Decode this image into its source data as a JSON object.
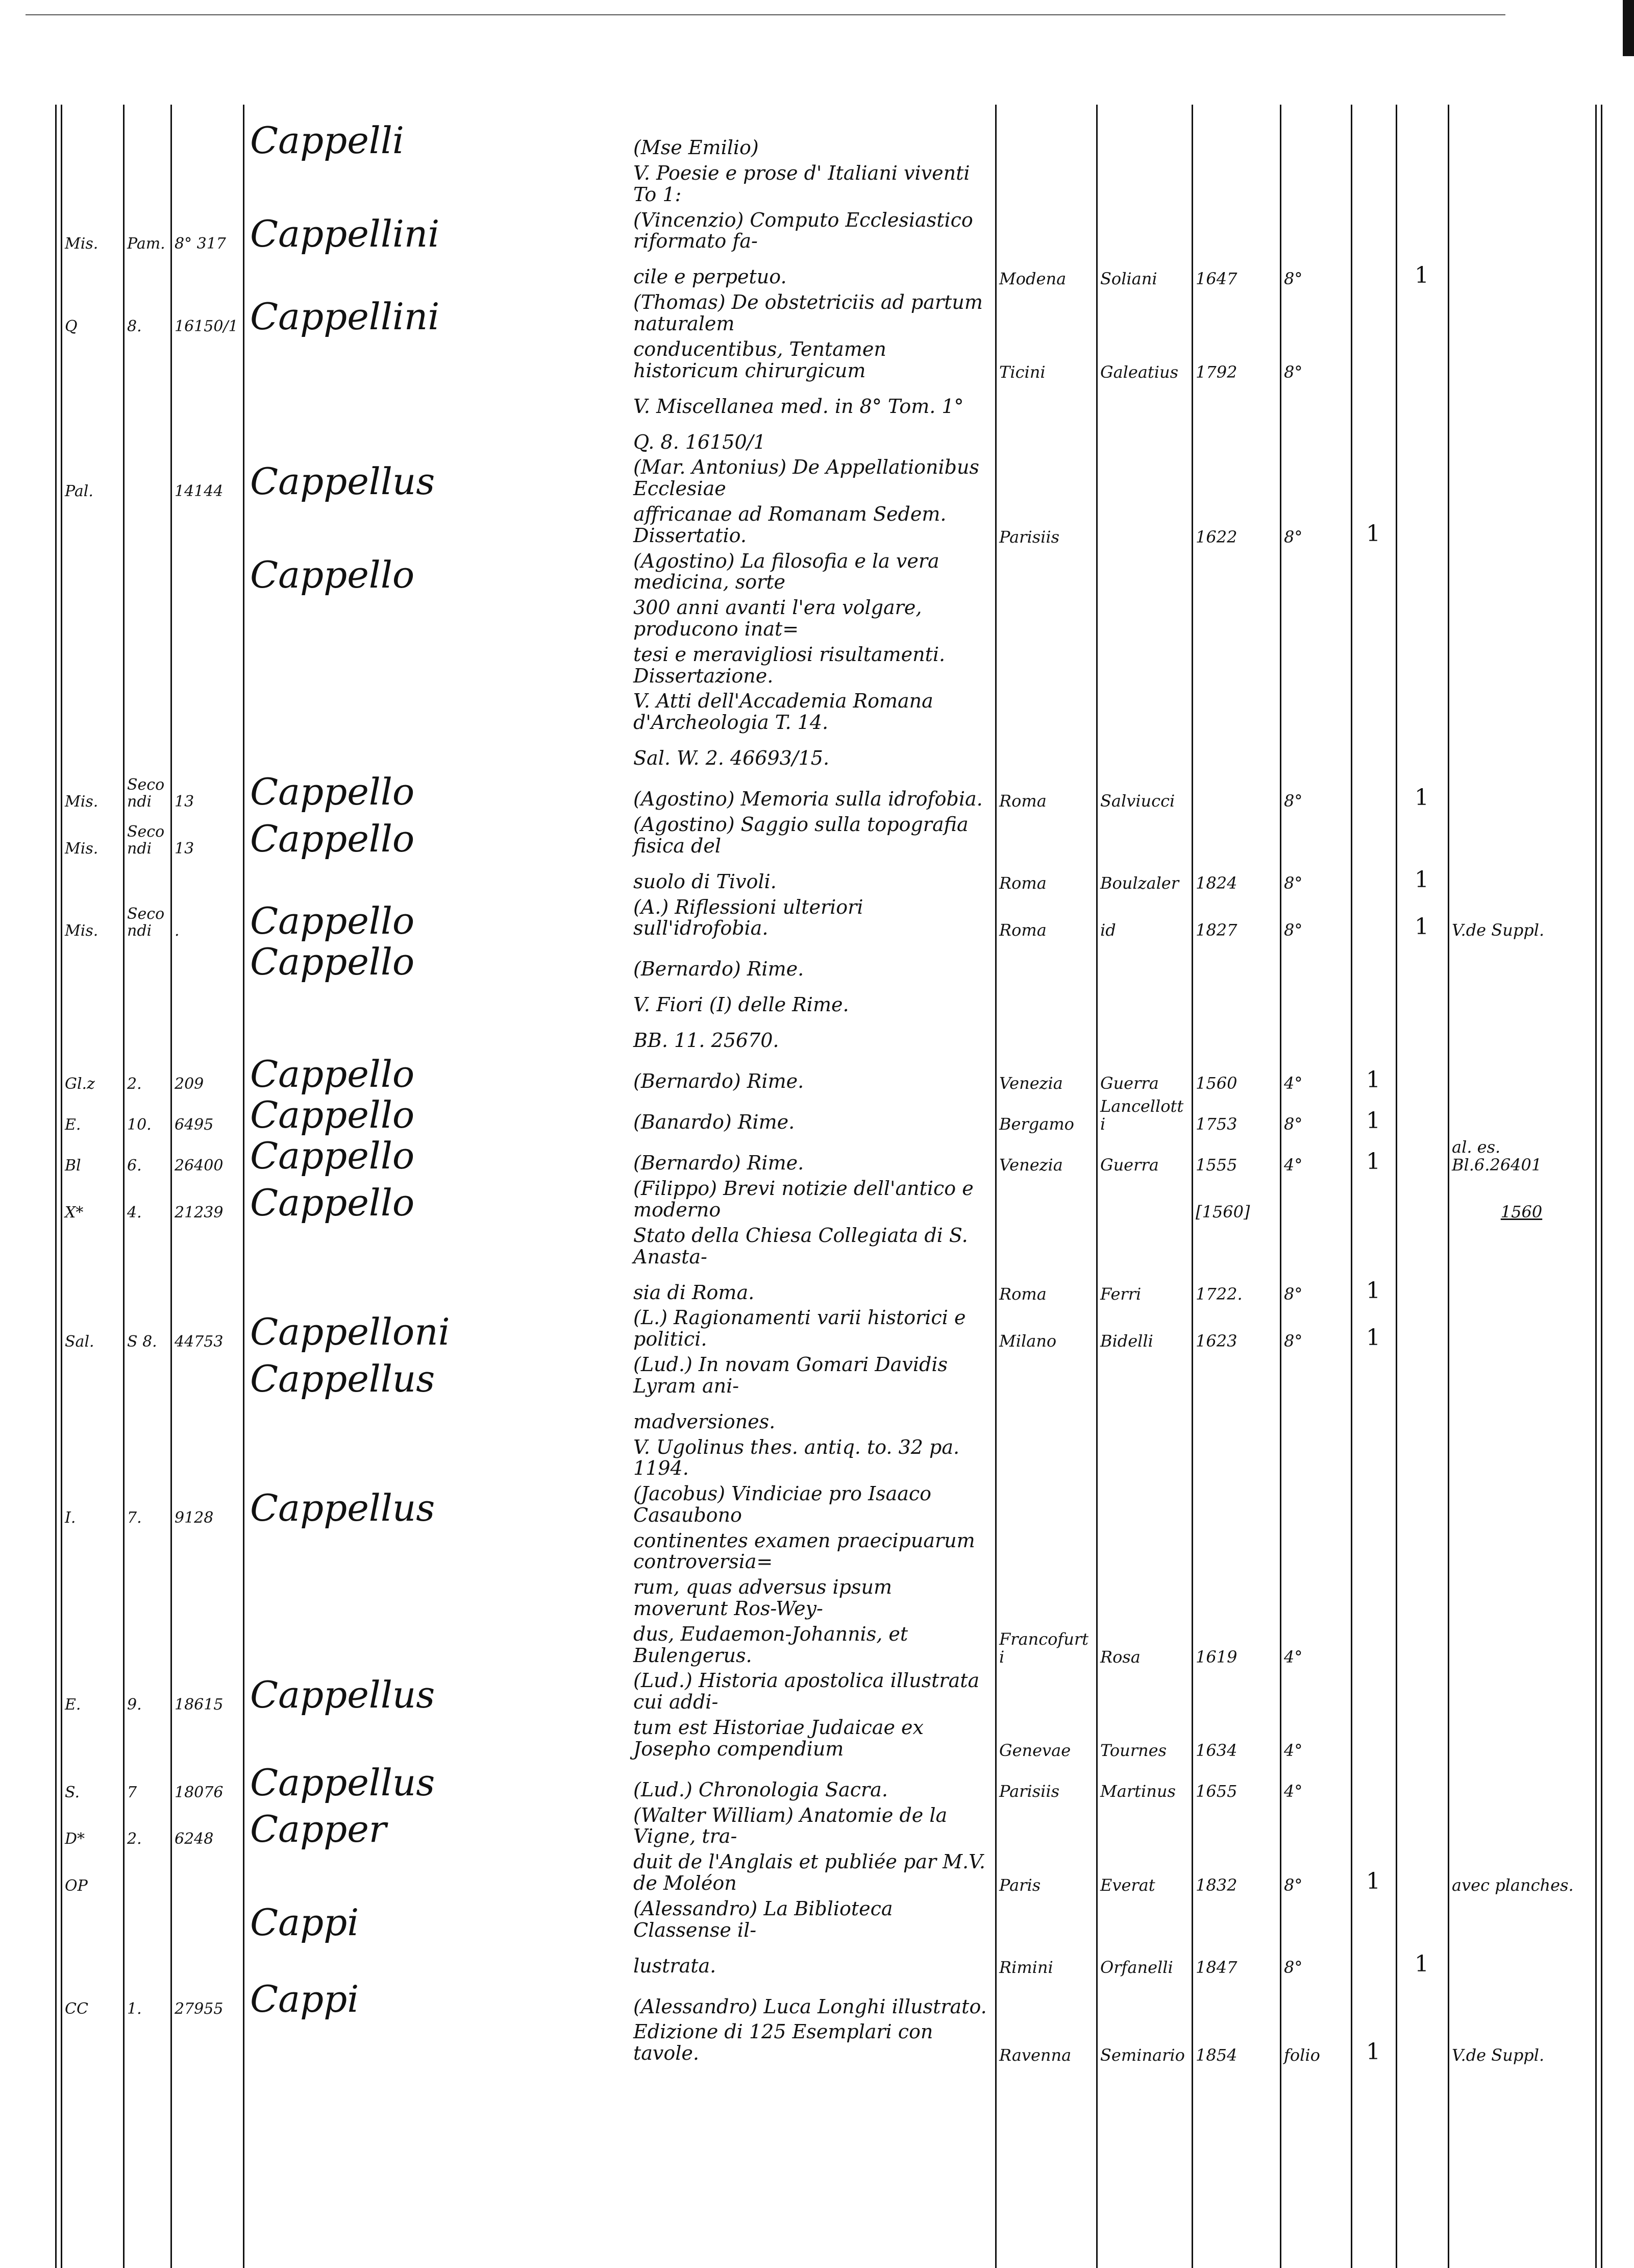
{
  "entries": [
    {
      "name": "Cappelli",
      "text": "(Mse Emilio)"
    },
    {
      "text": "V. Poesie e prose d' Italiani viventi To 1:"
    },
    {
      "shelf1": "Mis.",
      "shelf2": "Pam.",
      "shelf3": "8° 317",
      "name": "Cappellini",
      "text": "(Vincenzio) Computo Ecclesiastico riformato fa-"
    },
    {
      "text": "cile e perpetuo.",
      "place": "Modena",
      "printer": "Soliani",
      "year": "1647",
      "format": "8°",
      "c2": "1"
    },
    {
      "shelf1": "Q",
      "shelf2": "8.",
      "shelf3": "16150/1",
      "name": "Cappellini",
      "text": "(Thomas) De obstetriciis ad partum naturalem"
    },
    {
      "text": "conducentibus, Tentamen historicum chirurgicum",
      "place": "Ticini",
      "printer": "Galeatius",
      "year": "1792",
      "format": "8°"
    },
    {
      "text": "V. Miscellanea med. in 8° Tom. 1°"
    },
    {
      "text": "Q. 8. 16150/1"
    },
    {
      "shelf1": "Pal.",
      "shelf3": "14144",
      "name": "Cappellus",
      "text": "(Mar. Antonius) De Appellationibus Ecclesiae"
    },
    {
      "text": "affricanae ad Romanam Sedem. Dissertatio.",
      "place": "Parisiis",
      "year": "1622",
      "format": "8°",
      "c1": "1"
    },
    {
      "name": "Cappello",
      "text": "(Agostino) La filosofia e la vera medicina, sorte"
    },
    {
      "text": "300 anni avanti l'era volgare, producono inat="
    },
    {
      "text": "tesi e meravigliosi risultamenti. Dissertazione."
    },
    {
      "text": "V. Atti dell'Accademia Romana d'Archeologia T. 14."
    },
    {
      "text": "Sal. W. 2. 46693/15."
    },
    {
      "shelf1": "Mis.",
      "shelf2": "Secondi",
      "shelf3": "13",
      "name": "Cappello",
      "text": "(Agostino) Memoria sulla idrofobia.",
      "place": "Roma",
      "printer": "Salviucci",
      "format": "8°",
      "c2": "1"
    },
    {
      "shelf1": "Mis.",
      "shelf2": "Secondi",
      "shelf3": "13",
      "name": "Cappello",
      "text": "(Agostino) Saggio sulla topografia fisica del"
    },
    {
      "text": "suolo di Tivoli.",
      "place": "Roma",
      "printer": "Boulzaler",
      "year": "1824",
      "format": "8°",
      "c2": "1"
    },
    {
      "shelf1": "Mis.",
      "shelf2": "Secondi",
      "shelf3": ".",
      "name": "Cappello",
      "text": "(A.) Riflessioni ulteriori sull'idrofobia.",
      "place": "Roma",
      "printer": "id",
      "year": "1827",
      "format": "8°",
      "c2": "1",
      "note": "V.de Suppl."
    },
    {
      "name": "Cappello",
      "text": "(Bernardo) Rime."
    },
    {
      "text": "V. Fiori (I) delle Rime."
    },
    {
      "text": "BB. 11. 25670."
    },
    {
      "shelf1": "Gl.z",
      "shelf2": "2.",
      "shelf3": "209",
      "name": "Cappello",
      "text": "(Bernardo) Rime.",
      "place": "Venezia",
      "printer": "Guerra",
      "year": "1560",
      "format": "4°",
      "c1": "1"
    },
    {
      "shelf1": "E.",
      "shelf2": "10.",
      "shelf3": "6495",
      "name": "Cappello",
      "text": "(Banardo) Rime.",
      "place": "Bergamo",
      "printer": "Lancellotti",
      "year": "1753",
      "format": "8°",
      "c1": "1"
    },
    {
      "shelf1": "Bl",
      "shelf2": "6.",
      "shelf3": "26400",
      "name": "Cappello",
      "text": "(Bernardo) Rime.",
      "place": "Venezia",
      "printer": "Guerra",
      "year": "1555",
      "format": "4°",
      "c1": "1",
      "note": "al. es. Bl.6.26401"
    },
    {
      "shelf1": "X*",
      "shelf2": "4.",
      "shelf3": "21239",
      "name": "Cappello",
      "text": "(Filippo) Brevi notizie dell'antico e moderno",
      "year": "[1560]",
      "note": "1560"
    },
    {
      "text": "Stato della Chiesa Collegiata di S. Anasta-"
    },
    {
      "text": "sia di Roma.",
      "place": "Roma",
      "printer": "Ferri",
      "year": "1722.",
      "format": "8°",
      "c1": "1"
    },
    {
      "shelf1": "Sal.",
      "shelf2": "S 8.",
      "shelf3": "44753",
      "name": "Cappelloni",
      "text": "(L.) Ragionamenti varii historici e politici.",
      "place": "Milano",
      "printer": "Bidelli",
      "year": "1623",
      "format": "8°",
      "c1": "1"
    },
    {
      "name": "Cappellus",
      "text": "(Lud.) In novam Gomari Davidis Lyram ani-"
    },
    {
      "text": "madversiones."
    },
    {
      "text": "V. Ugolinus thes. antiq. to. 32 pa. 1194."
    },
    {
      "shelf1": "I.",
      "shelf2": "7.",
      "shelf3": "9128",
      "name": "Cappellus",
      "text": "(Jacobus) Vindiciae pro Isaaco Casaubono"
    },
    {
      "text": "continentes examen praecipuarum controversia="
    },
    {
      "text": "rum, quas adversus ipsum moverunt Ros-Wey-"
    },
    {
      "text": "dus, Eudaemon-Johannis, et Bulengerus.",
      "place": "Francofurti",
      "printer": "Rosa",
      "year": "1619",
      "format": "4°"
    },
    {
      "shelf1": "E.",
      "shelf2": "9.",
      "shelf3": "18615",
      "name": "Cappellus",
      "text": "(Lud.) Historia apostolica illustrata cui addi-"
    },
    {
      "text": "tum est Historiae Judaicae ex Josepho compendium",
      "place": "Genevae",
      "printer": "Tournes",
      "year": "1634",
      "format": "4°"
    },
    {
      "shelf1": "S.",
      "shelf2": "7",
      "shelf3": "18076",
      "name": "Cappellus",
      "text": "(Lud.) Chronologia Sacra.",
      "place": "Parisiis",
      "printer": "Martinus",
      "year": "1655",
      "format": "4°"
    },
    {
      "shelf1": "D*",
      "shelf2": "2.",
      "shelf3": "6248",
      "name": "Capper",
      "text": "(Walter William) Anatomie de la Vigne, tra-"
    },
    {
      "shelf1": "OP",
      "text": "duit de l'Anglais et publiée par M.V. de Moléon",
      "place": "Paris",
      "printer": "Everat",
      "year": "1832",
      "format": "8°",
      "c1": "1",
      "note": "avec planches."
    },
    {
      "name": "Cappi",
      "text": "(Alessandro) La Biblioteca Classense il-"
    },
    {
      "text": "lustrata.",
      "place": "Rimini",
      "printer": "Orfanelli",
      "year": "1847",
      "format": "8°",
      "c2": "1"
    },
    {
      "shelf1": "CC",
      "shelf2": "1.",
      "shelf3": "27955",
      "name": "Cappi",
      "text": "(Alessandro) Luca Longhi illustrato."
    },
    {
      "text": "Edizione di 125 Esemplari con tavole.",
      "place": "Ravenna",
      "printer": "Seminario",
      "year": "1854",
      "format": "folio",
      "c1": "1",
      "note": "V.de Suppl."
    }
  ]
}
